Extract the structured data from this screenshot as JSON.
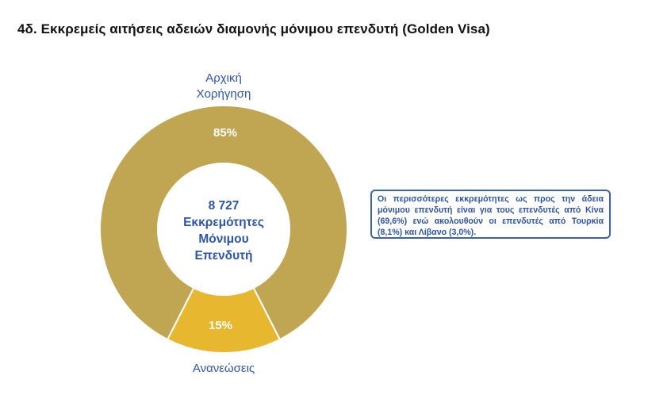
{
  "title": "4δ. Εκκρεμείς αιτήσεις αδειών διαμονής μόνιμου επενδυτή (Golden Visa)",
  "chart_data": {
    "type": "pie",
    "variant": "donut",
    "title": "4δ. Εκκρεμείς αιτήσεις αδειών διαμονής μόνιμου επενδυτή (Golden Visa)",
    "categories": [
      "Αρχική\nΧορήγηση",
      "Ανανεώσεις"
    ],
    "values": [
      85,
      15
    ],
    "value_labels": [
      "85%",
      "15%"
    ],
    "colors": [
      "#c0a652",
      "#e8b730"
    ],
    "legend": "none",
    "center_text": {
      "value": "8 727",
      "lines": [
        "Εκκρεμότητες",
        "Μόνιμου",
        "Επενδυτή"
      ]
    },
    "annotation": "Οι περισσότερες εκκρεμότητες ως προς την άδεια μόνιμου επενδυτή είναι για τους επενδυτές από Κίνα (69,6%) ενώ ακολουθούν οι επενδυτές από Τουρκία (8,1%) και Λίβανο (3,0%)."
  }
}
